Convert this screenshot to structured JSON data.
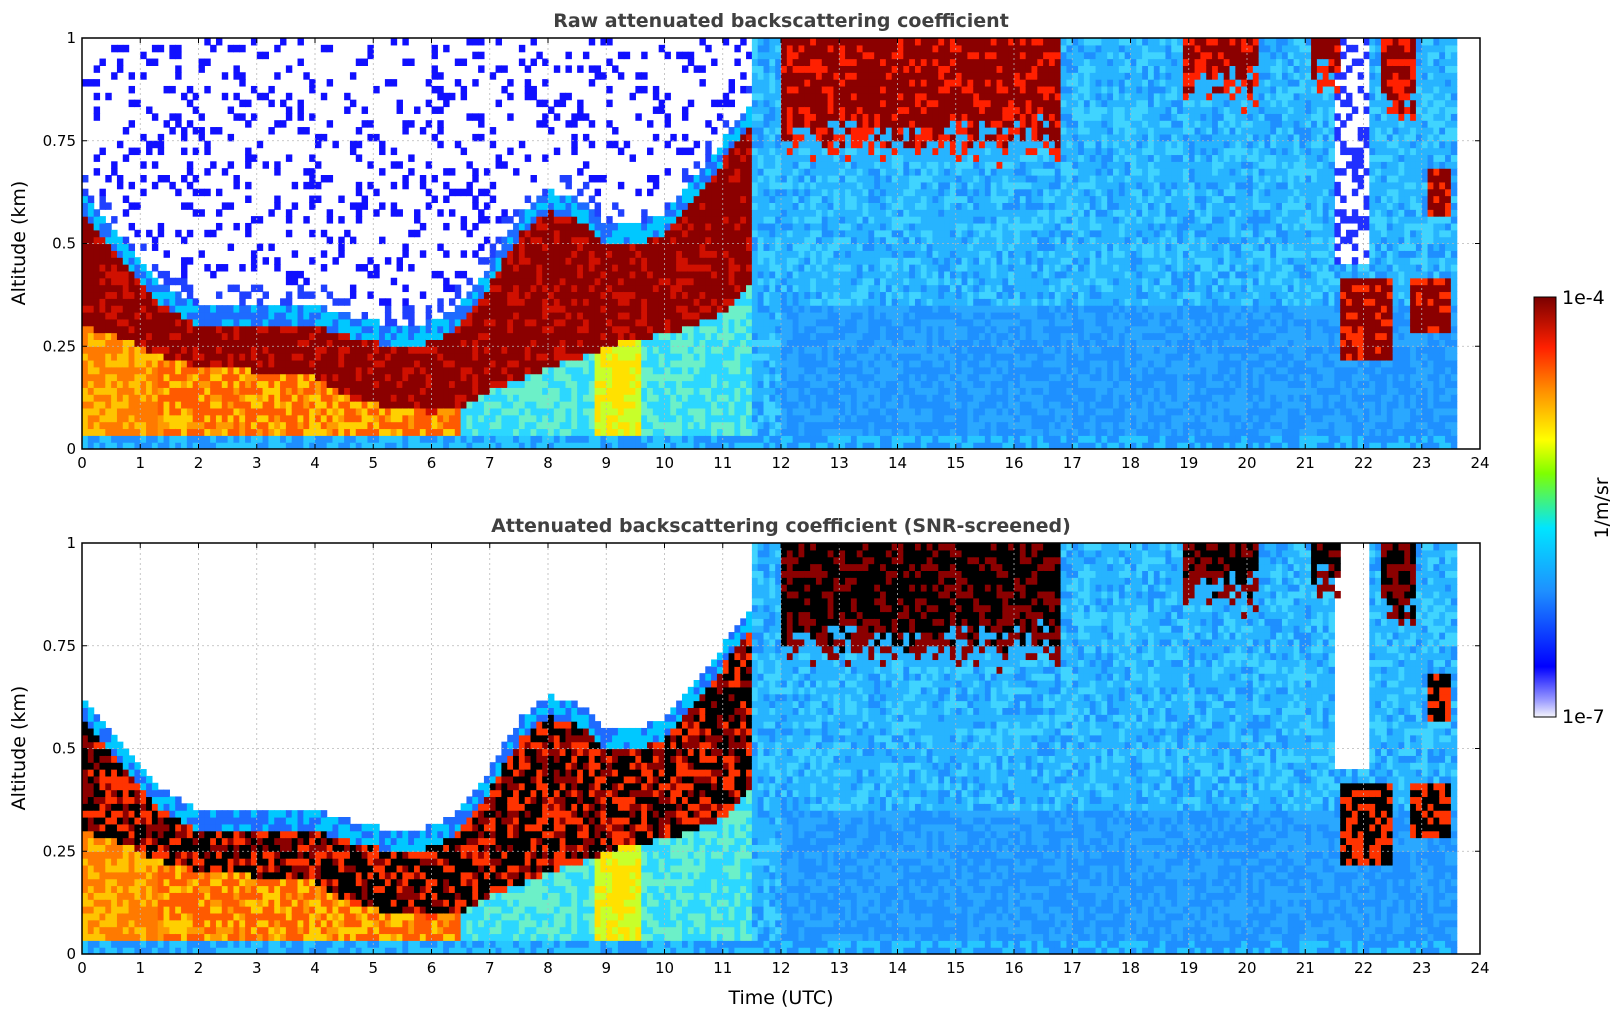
{
  "chart_data": [
    {
      "type": "heatmap",
      "title": "Raw attenuated backscattering coefficient",
      "xlabel": "",
      "ylabel": "Altitude (km)",
      "xlim": [
        0,
        24
      ],
      "ylim": [
        0,
        1
      ],
      "xticks": [
        "0",
        "1",
        "2",
        "3",
        "4",
        "5",
        "6",
        "7",
        "8",
        "9",
        "10",
        "11",
        "12",
        "13",
        "14",
        "15",
        "16",
        "17",
        "18",
        "19",
        "20",
        "21",
        "22",
        "23",
        "24"
      ],
      "yticks": [
        "0",
        "0.25",
        "0.5",
        "0.75",
        "1"
      ],
      "data_end_time": 23.65,
      "cloud_top_profile": {
        "time": [
          0,
          0.5,
          1,
          1.5,
          2,
          2.5,
          3,
          3.5,
          4,
          4.5,
          5,
          5.5,
          6,
          6.5,
          7,
          7.5,
          8,
          8.5,
          9,
          9.5,
          10,
          10.5,
          11,
          11.5
        ],
        "base_km": [
          0.3,
          0.28,
          0.25,
          0.22,
          0.2,
          0.2,
          0.19,
          0.18,
          0.18,
          0.13,
          0.11,
          0.1,
          0.09,
          0.1,
          0.14,
          0.17,
          0.2,
          0.22,
          0.25,
          0.27,
          0.28,
          0.3,
          0.33,
          0.4
        ],
        "top_km": [
          0.58,
          0.5,
          0.4,
          0.34,
          0.3,
          0.3,
          0.3,
          0.3,
          0.3,
          0.28,
          0.26,
          0.25,
          0.26,
          0.3,
          0.4,
          0.52,
          0.58,
          0.56,
          0.5,
          0.5,
          0.52,
          0.6,
          0.7,
          0.8
        ]
      },
      "high_cloud_segments": [
        {
          "start": 12.0,
          "end": 16.8,
          "base_km": 0.75
        },
        {
          "start": 18.9,
          "end": 20.2,
          "base_km": 0.88
        },
        {
          "start": 21.1,
          "end": 21.6,
          "base_km": 0.9
        },
        {
          "start": 22.3,
          "end": 22.9,
          "base_km": 0.82
        }
      ],
      "low_cloud_segments": [
        {
          "start": 21.6,
          "end": 22.5,
          "base_km": 0.22,
          "top_km": 0.42
        },
        {
          "start": 22.8,
          "end": 23.5,
          "base_km": 0.28,
          "top_km": 0.42
        },
        {
          "start": 23.1,
          "end": 23.5,
          "base_km": 0.56,
          "top_km": 0.68
        }
      ],
      "screened": false
    },
    {
      "type": "heatmap",
      "title": "Attenuated backscattering coefficient (SNR-screened)",
      "xlabel": "Time (UTC)",
      "ylabel": "Altitude (km)",
      "xlim": [
        0,
        24
      ],
      "ylim": [
        0,
        1
      ],
      "xticks": [
        "0",
        "1",
        "2",
        "3",
        "4",
        "5",
        "6",
        "7",
        "8",
        "9",
        "10",
        "11",
        "12",
        "13",
        "14",
        "15",
        "16",
        "17",
        "18",
        "19",
        "20",
        "21",
        "22",
        "23",
        "24"
      ],
      "yticks": [
        "0",
        "0.25",
        "0.5",
        "0.75",
        "1"
      ],
      "data_end_time": 23.65,
      "screened": true
    }
  ],
  "colorbar": {
    "label": "1/m/sr",
    "max_label": "1e-4",
    "min_label": "1e-7",
    "stops": [
      "#f2f2fa",
      "#0000ff",
      "#1e90ff",
      "#00ffff",
      "#ffff00",
      "#ff8c00",
      "#ff0000",
      "#8b0000"
    ]
  }
}
